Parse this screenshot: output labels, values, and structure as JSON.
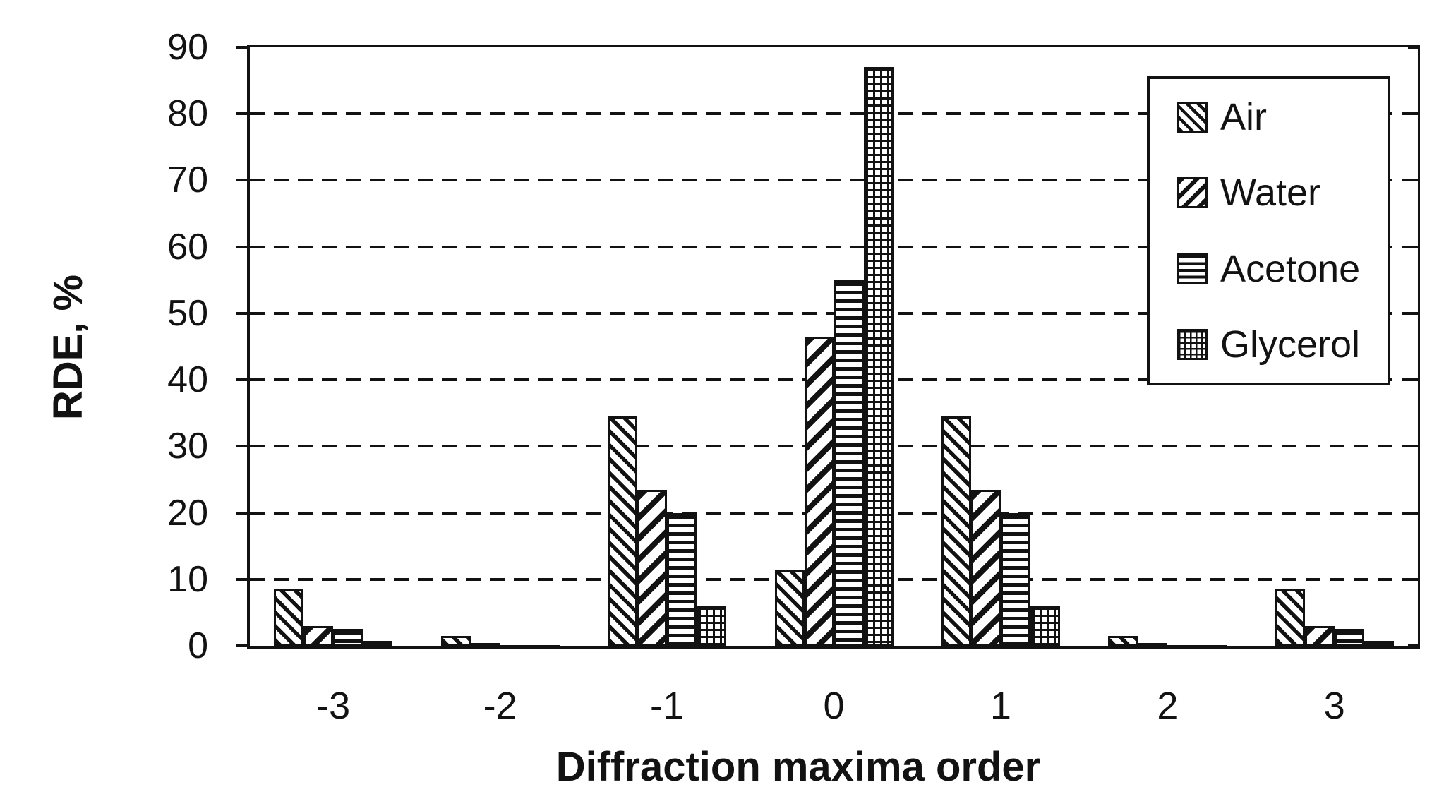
{
  "chart_data": {
    "type": "bar",
    "title": "",
    "xlabel": "Diffraction maxima order",
    "ylabel": "RDE, %",
    "categories": [
      "-3",
      "-2",
      "-1",
      "0",
      "1",
      "2",
      "3"
    ],
    "series": [
      {
        "name": "Air",
        "pattern": "diagonal-backslash-hatch",
        "values": [
          8.5,
          1.5,
          34.5,
          11.5,
          34.5,
          1.5,
          8.5
        ]
      },
      {
        "name": "Water",
        "pattern": "diagonal-slash-hatch",
        "values": [
          3.0,
          0.4,
          23.5,
          46.5,
          23.5,
          0.4,
          3.0
        ]
      },
      {
        "name": "Acetone",
        "pattern": "horizontal-lines",
        "values": [
          2.5,
          0.15,
          20.0,
          55.0,
          20.0,
          0.15,
          2.5
        ]
      },
      {
        "name": "Glycerol",
        "pattern": "grid-crosshatch",
        "values": [
          0.7,
          0.1,
          6.0,
          87.0,
          6.0,
          0.1,
          0.7
        ]
      }
    ],
    "ylim": [
      0,
      90
    ],
    "yticks": [
      0,
      10,
      20,
      30,
      40,
      50,
      60,
      70,
      80,
      90
    ],
    "gridlines_at": [
      10,
      20,
      30,
      40,
      50,
      60,
      70,
      80
    ],
    "grid_style": "dashed-horizontal",
    "legend_position": "top-right",
    "bar_fill": "#ffffff",
    "ink_color": "#121212",
    "background_color": "#ffffff"
  },
  "legend": {
    "entries": [
      "Air",
      "Water",
      "Acetone",
      "Glycerol"
    ]
  }
}
